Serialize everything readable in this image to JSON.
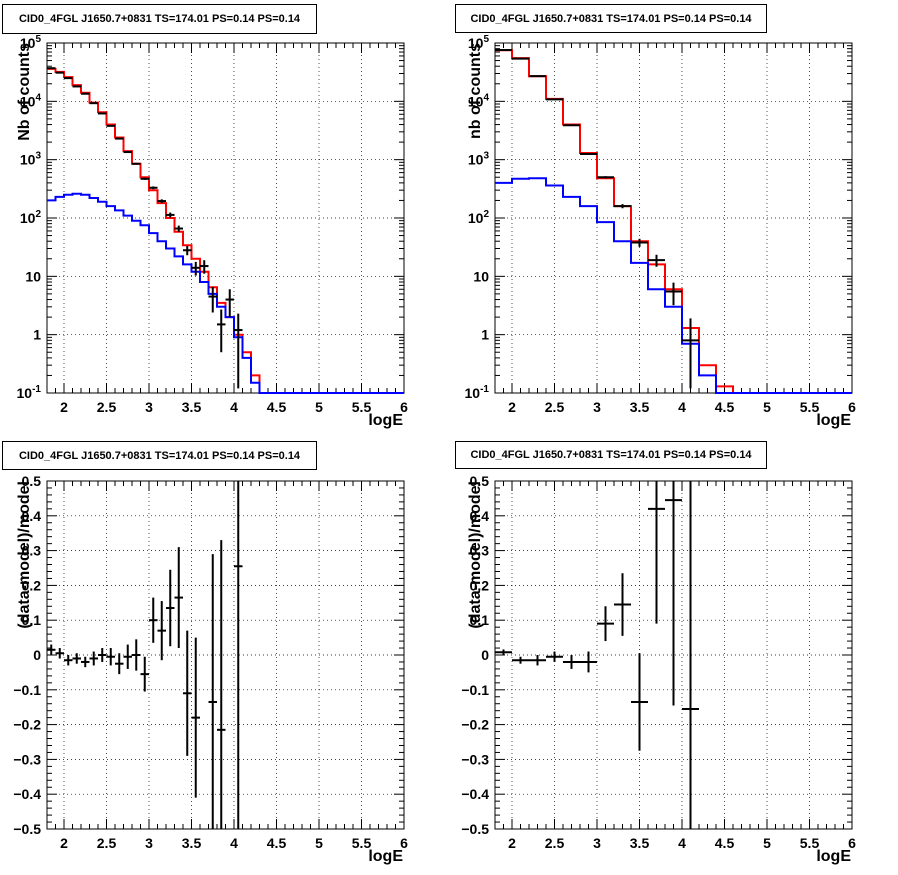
{
  "page_title": "CID0_4FGL J1650.7+0831 TS=174.01 PS=0.14 PS=0.14",
  "chart_data": [
    {
      "type": "step-histogram",
      "title": "CID0_4FGL J1650.7+0831 TS=174.01 PS=0.14 PS=0.14",
      "xlabel": "logE",
      "ylabel": "Nb of counts",
      "yscale": "log",
      "xlim": [
        1.8,
        6.0
      ],
      "ylim": [
        0.1,
        100000
      ],
      "xticks": [
        "2",
        "2.5",
        "3",
        "3.5",
        "4",
        "4.5",
        "5",
        "5.5",
        "6"
      ],
      "yticks": [
        "10^-1",
        "1",
        "10",
        "10^2",
        "10^3",
        "10^4",
        "10^5"
      ],
      "grid": true,
      "bin_edges": [
        1.8,
        1.9,
        2.0,
        2.1,
        2.2,
        2.3,
        2.4,
        2.5,
        2.6,
        2.7,
        2.8,
        2.9,
        3.0,
        3.1,
        3.2,
        3.3,
        3.4,
        3.5,
        3.6,
        3.7,
        3.8,
        3.9,
        4.0,
        4.1,
        4.2,
        4.3,
        4.4,
        4.5,
        4.6,
        4.7,
        4.8,
        4.9,
        5.0,
        5.1,
        5.2,
        5.3,
        5.4,
        5.5,
        5.6,
        5.7,
        5.8,
        5.9,
        6.0
      ],
      "series": [
        {
          "color": "#ff0000",
          "values": [
            36000,
            32000,
            26000,
            19000,
            14000,
            9500,
            6500,
            4000,
            2400,
            1400,
            850,
            500,
            300,
            180,
            100,
            58,
            34,
            20,
            12,
            6.5,
            3.5,
            2,
            1,
            0.5,
            0.2,
            0.1,
            0.1,
            0.1,
            0.1,
            0.1,
            0.1,
            0.1,
            0.1,
            0.1,
            0.1,
            0.1,
            0.1,
            0.1,
            0.1,
            0.1,
            0.1,
            0.1
          ]
        },
        {
          "color": "#0000ff",
          "values": [
            200,
            230,
            250,
            260,
            250,
            220,
            190,
            160,
            135,
            110,
            90,
            75,
            55,
            40,
            30,
            22,
            16,
            12,
            8,
            5,
            3,
            2,
            0.9,
            0.4,
            0.15,
            0.1,
            0.1,
            0.1,
            0.1,
            0.1,
            0.1,
            0.1,
            0.1,
            0.1,
            0.1,
            0.1,
            0.1,
            0.1,
            0.1,
            0.1,
            0.1,
            0.1
          ]
        }
      ],
      "data_points": [
        {
          "x": 1.85,
          "y": 37000,
          "dx": 0.05,
          "ylo": 36800,
          "yhi": 37200
        },
        {
          "x": 1.95,
          "y": 31000,
          "dx": 0.05,
          "ylo": 30800,
          "yhi": 31200
        },
        {
          "x": 2.05,
          "y": 25000,
          "dx": 0.05,
          "ylo": 24800,
          "yhi": 25200
        },
        {
          "x": 2.15,
          "y": 18000,
          "dx": 0.05,
          "ylo": 17850,
          "yhi": 18150
        },
        {
          "x": 2.25,
          "y": 13500,
          "dx": 0.05,
          "ylo": 13380,
          "yhi": 13620
        },
        {
          "x": 2.35,
          "y": 9300,
          "dx": 0.05,
          "ylo": 9200,
          "yhi": 9400
        },
        {
          "x": 2.45,
          "y": 6200,
          "dx": 0.05,
          "ylo": 6120,
          "yhi": 6280
        },
        {
          "x": 2.55,
          "y": 3800,
          "dx": 0.05,
          "ylo": 3740,
          "yhi": 3860
        },
        {
          "x": 2.65,
          "y": 2300,
          "dx": 0.05,
          "ylo": 2250,
          "yhi": 2350
        },
        {
          "x": 2.75,
          "y": 1350,
          "dx": 0.05,
          "ylo": 1310,
          "yhi": 1390
        },
        {
          "x": 2.85,
          "y": 850,
          "dx": 0.05,
          "ylo": 820,
          "yhi": 880
        },
        {
          "x": 2.95,
          "y": 470,
          "dx": 0.05,
          "ylo": 450,
          "yhi": 490
        },
        {
          "x": 3.05,
          "y": 330,
          "dx": 0.05,
          "ylo": 312,
          "yhi": 348
        },
        {
          "x": 3.15,
          "y": 195,
          "dx": 0.05,
          "ylo": 181,
          "yhi": 209
        },
        {
          "x": 3.25,
          "y": 113,
          "dx": 0.05,
          "ylo": 102,
          "yhi": 124
        },
        {
          "x": 3.35,
          "y": 66,
          "dx": 0.05,
          "ylo": 58,
          "yhi": 74
        },
        {
          "x": 3.45,
          "y": 28,
          "dx": 0.05,
          "ylo": 23,
          "yhi": 33
        },
        {
          "x": 3.55,
          "y": 14,
          "dx": 0.05,
          "ylo": 10.3,
          "yhi": 17.7
        },
        {
          "x": 3.65,
          "y": 15,
          "dx": 0.05,
          "ylo": 11.1,
          "yhi": 18.9
        },
        {
          "x": 3.75,
          "y": 4.5,
          "dx": 0.05,
          "ylo": 2.4,
          "yhi": 6.6
        },
        {
          "x": 3.85,
          "y": 1.5,
          "dx": 0.05,
          "ylo": 0.5,
          "yhi": 2.7
        },
        {
          "x": 3.95,
          "y": 4,
          "dx": 0.05,
          "ylo": 2,
          "yhi": 6
        },
        {
          "x": 4.05,
          "y": 1.2,
          "dx": 0.05,
          "ylo": 0.12,
          "yhi": 2.3
        }
      ]
    },
    {
      "type": "step-histogram",
      "title": "CID0_4FGL J1650.7+0831 TS=174.01 PS=0.14 PS=0.14",
      "xlabel": "logE",
      "ylabel": "nb of counts",
      "yscale": "log",
      "xlim": [
        1.8,
        6.0
      ],
      "ylim": [
        0.1,
        100000
      ],
      "xticks": [
        "2",
        "2.5",
        "3",
        "3.5",
        "4",
        "4.5",
        "5",
        "5.5",
        "6"
      ],
      "yticks": [
        "10^-1",
        "1",
        "10",
        "10^2",
        "10^3",
        "10^4",
        "10^5"
      ],
      "grid": true,
      "bin_edges": [
        1.8,
        2.0,
        2.2,
        2.4,
        2.6,
        2.8,
        3.0,
        3.2,
        3.4,
        3.6,
        3.8,
        4.0,
        4.2,
        4.4,
        4.6,
        4.8,
        5.0,
        5.2,
        5.4,
        5.6,
        5.8,
        6.0
      ],
      "series": [
        {
          "color": "#ff0000",
          "values": [
            75000,
            55000,
            27000,
            11000,
            4000,
            1300,
            480,
            160,
            40,
            16,
            6,
            1.3,
            0.3,
            0.13,
            0.1,
            0.1,
            0.1,
            0.1,
            0.1,
            0.1,
            0.1
          ]
        },
        {
          "color": "#0000ff",
          "values": [
            400,
            470,
            480,
            360,
            230,
            160,
            85,
            40,
            17,
            6,
            3,
            0.7,
            0.2,
            0.1,
            0.1,
            0.1,
            0.1,
            0.1,
            0.1,
            0.1,
            0.1
          ]
        }
      ],
      "data_points": [
        {
          "x": 1.9,
          "y": 76000,
          "dx": 0.1,
          "ylo": 75700,
          "yhi": 76300
        },
        {
          "x": 2.1,
          "y": 54000,
          "dx": 0.1,
          "ylo": 53770,
          "yhi": 54230
        },
        {
          "x": 2.3,
          "y": 27000,
          "dx": 0.1,
          "ylo": 26840,
          "yhi": 27160
        },
        {
          "x": 2.5,
          "y": 10800,
          "dx": 0.1,
          "ylo": 10700,
          "yhi": 10900
        },
        {
          "x": 2.7,
          "y": 3900,
          "dx": 0.1,
          "ylo": 3840,
          "yhi": 3960
        },
        {
          "x": 2.9,
          "y": 1250,
          "dx": 0.1,
          "ylo": 1215,
          "yhi": 1285
        },
        {
          "x": 3.1,
          "y": 500,
          "dx": 0.1,
          "ylo": 478,
          "yhi": 522
        },
        {
          "x": 3.3,
          "y": 160,
          "dx": 0.1,
          "ylo": 147,
          "yhi": 173
        },
        {
          "x": 3.5,
          "y": 38,
          "dx": 0.1,
          "ylo": 32,
          "yhi": 44
        },
        {
          "x": 3.7,
          "y": 19,
          "dx": 0.1,
          "ylo": 14.6,
          "yhi": 23.4
        },
        {
          "x": 3.9,
          "y": 5.5,
          "dx": 0.1,
          "ylo": 3.2,
          "yhi": 7.8
        },
        {
          "x": 4.1,
          "y": 0.8,
          "dx": 0.1,
          "ylo": 0.12,
          "yhi": 1.9
        }
      ]
    },
    {
      "type": "scatter-errorbars",
      "title": "CID0_4FGL J1650.7+0831 TS=174.01 PS=0.14 PS=0.14",
      "xlabel": "logE",
      "ylabel": "(data-model)/model",
      "xlim": [
        1.8,
        6.0
      ],
      "ylim": [
        -0.5,
        0.5
      ],
      "xticks": [
        "2",
        "2.5",
        "3",
        "3.5",
        "4",
        "4.5",
        "5",
        "5.5",
        "6"
      ],
      "yticks": [
        "-0.5",
        "-0.4",
        "-0.3",
        "-0.2",
        "-0.1",
        "0",
        "0.1",
        "0.2",
        "0.3",
        "0.4",
        "0.5"
      ],
      "grid": true,
      "data_points": [
        {
          "x": 1.85,
          "y": 0.015,
          "dx": 0.05,
          "ylo": 0.0,
          "yhi": 0.03
        },
        {
          "x": 1.95,
          "y": 0.005,
          "dx": 0.05,
          "ylo": -0.01,
          "yhi": 0.02
        },
        {
          "x": 2.05,
          "y": -0.015,
          "dx": 0.05,
          "ylo": -0.03,
          "yhi": 0.0
        },
        {
          "x": 2.15,
          "y": -0.01,
          "dx": 0.05,
          "ylo": -0.025,
          "yhi": 0.005
        },
        {
          "x": 2.25,
          "y": -0.02,
          "dx": 0.05,
          "ylo": -0.035,
          "yhi": -0.005
        },
        {
          "x": 2.35,
          "y": -0.01,
          "dx": 0.05,
          "ylo": -0.03,
          "yhi": 0.01
        },
        {
          "x": 2.45,
          "y": 0.0,
          "dx": 0.05,
          "ylo": -0.02,
          "yhi": 0.02
        },
        {
          "x": 2.55,
          "y": -0.005,
          "dx": 0.05,
          "ylo": -0.03,
          "yhi": 0.02
        },
        {
          "x": 2.65,
          "y": -0.025,
          "dx": 0.05,
          "ylo": -0.055,
          "yhi": 0.005
        },
        {
          "x": 2.75,
          "y": -0.005,
          "dx": 0.05,
          "ylo": -0.04,
          "yhi": 0.03
        },
        {
          "x": 2.85,
          "y": 0.0,
          "dx": 0.05,
          "ylo": -0.045,
          "yhi": 0.045
        },
        {
          "x": 2.95,
          "y": -0.055,
          "dx": 0.05,
          "ylo": -0.105,
          "yhi": -0.005
        },
        {
          "x": 3.05,
          "y": 0.1,
          "dx": 0.05,
          "ylo": 0.035,
          "yhi": 0.165
        },
        {
          "x": 3.15,
          "y": 0.07,
          "dx": 0.05,
          "ylo": -0.015,
          "yhi": 0.155
        },
        {
          "x": 3.25,
          "y": 0.135,
          "dx": 0.05,
          "ylo": 0.025,
          "yhi": 0.245
        },
        {
          "x": 3.35,
          "y": 0.165,
          "dx": 0.05,
          "ylo": 0.02,
          "yhi": 0.31
        },
        {
          "x": 3.45,
          "y": -0.11,
          "dx": 0.05,
          "ylo": -0.29,
          "yhi": 0.07
        },
        {
          "x": 3.55,
          "y": -0.18,
          "dx": 0.05,
          "ylo": -0.41,
          "yhi": 0.05
        },
        {
          "x": 3.75,
          "y": -0.135,
          "dx": 0.05,
          "ylo": -0.5,
          "yhi": 0.29
        },
        {
          "x": 3.85,
          "y": -0.215,
          "dx": 0.05,
          "ylo": -0.5,
          "yhi": 0.33
        },
        {
          "x": 4.05,
          "y": 0.255,
          "dx": 0.05,
          "ylo": -0.5,
          "yhi": 0.5
        }
      ]
    },
    {
      "type": "scatter-errorbars",
      "title": "CID0_4FGL J1650.7+0831 TS=174.01 PS=0.14 PS=0.14",
      "xlabel": "logE",
      "ylabel": "(data-model)/model",
      "xlim": [
        1.8,
        6.0
      ],
      "ylim": [
        -0.5,
        0.5
      ],
      "xticks": [
        "2",
        "2.5",
        "3",
        "3.5",
        "4",
        "4.5",
        "5",
        "5.5",
        "6"
      ],
      "yticks": [
        "-0.5",
        "-0.4",
        "-0.3",
        "-0.2",
        "-0.1",
        "0",
        "0.1",
        "0.2",
        "0.3",
        "0.4",
        "0.5"
      ],
      "grid": true,
      "data_points": [
        {
          "x": 1.9,
          "y": 0.008,
          "dx": 0.1,
          "ylo": 0.0,
          "yhi": 0.016
        },
        {
          "x": 2.1,
          "y": -0.015,
          "dx": 0.1,
          "ylo": -0.025,
          "yhi": -0.005
        },
        {
          "x": 2.3,
          "y": -0.015,
          "dx": 0.1,
          "ylo": -0.03,
          "yhi": 0.0
        },
        {
          "x": 2.5,
          "y": -0.005,
          "dx": 0.1,
          "ylo": -0.02,
          "yhi": 0.01
        },
        {
          "x": 2.7,
          "y": -0.02,
          "dx": 0.1,
          "ylo": -0.04,
          "yhi": 0.0
        },
        {
          "x": 2.9,
          "y": -0.02,
          "dx": 0.1,
          "ylo": -0.05,
          "yhi": 0.01
        },
        {
          "x": 3.1,
          "y": 0.09,
          "dx": 0.1,
          "ylo": 0.04,
          "yhi": 0.14
        },
        {
          "x": 3.3,
          "y": 0.145,
          "dx": 0.1,
          "ylo": 0.055,
          "yhi": 0.235
        },
        {
          "x": 3.5,
          "y": -0.135,
          "dx": 0.1,
          "ylo": -0.275,
          "yhi": 0.005
        },
        {
          "x": 3.7,
          "y": 0.42,
          "dx": 0.1,
          "ylo": 0.09,
          "yhi": 0.5
        },
        {
          "x": 3.9,
          "y": 0.445,
          "dx": 0.1,
          "ylo": -0.145,
          "yhi": 0.5
        },
        {
          "x": 4.1,
          "y": -0.155,
          "dx": 0.1,
          "ylo": -0.5,
          "yhi": 0.5
        }
      ]
    }
  ]
}
